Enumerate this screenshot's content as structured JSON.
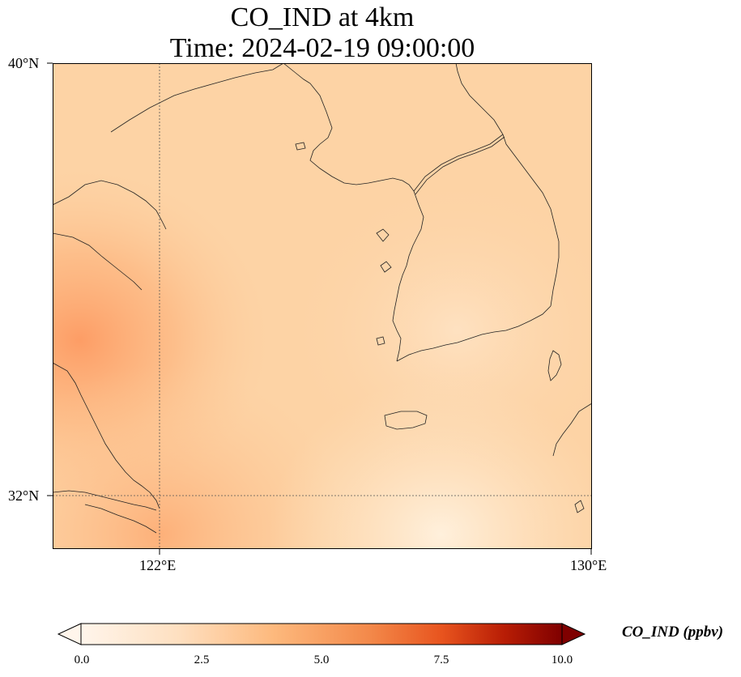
{
  "title": {
    "line1": "CO_IND at 4km",
    "line2": "Time: 2024-02-19 09:00:00"
  },
  "axes": {
    "lat_ticks": [
      "40°N",
      "32°N"
    ],
    "lon_ticks": [
      "122°E",
      "130°E"
    ]
  },
  "colorbar": {
    "label": "CO_IND (ppbv)",
    "ticks": [
      "0.0",
      "2.5",
      "5.0",
      "7.5",
      "10.0"
    ],
    "colors": {
      "low": "#fff5eb",
      "mid": "#fdae6b",
      "high": "#7f2704"
    }
  }
}
